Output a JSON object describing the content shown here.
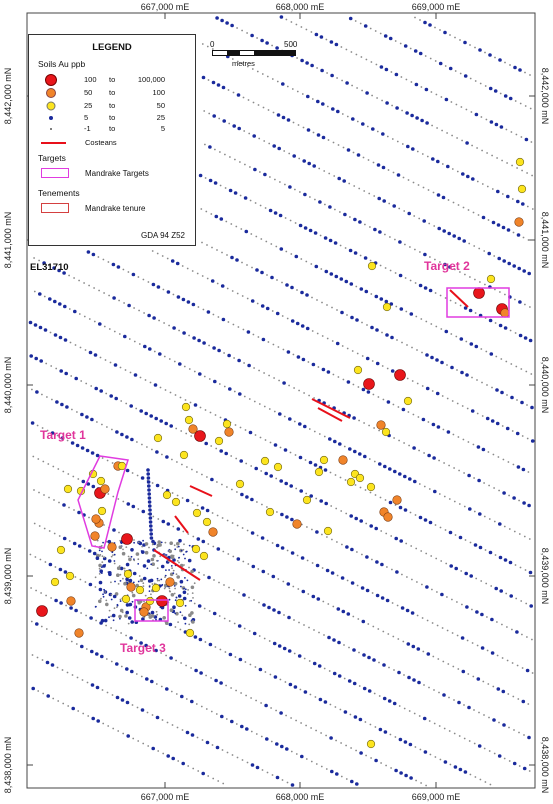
{
  "colors": {
    "au_high": "#e8161b",
    "au_med": "#f0842a",
    "au_low": "#fce41e",
    "au_trace": "#1a2a9c",
    "au_nil": "#8a8a8a",
    "costean": "#e8101a",
    "target": "#e03ce0",
    "tenure": "#d44040",
    "target_label": "#e0359b"
  },
  "axes": {
    "top_easting": [
      "667,000 mE",
      "668,000 mE",
      "669,000 mE"
    ],
    "bottom_easting": [
      "667,000 mE",
      "668,000 mE",
      "669,000 mE"
    ],
    "left_northing": [
      "8,442,000 mN",
      "8,441,000 mN",
      "8,440,000 mN",
      "8,439,000 mN",
      "8,438,000 mN"
    ],
    "right_northing": [
      "8,442,000 mN",
      "8,441,000 mN",
      "8,440,000 mN",
      "8,439,000 mN",
      "8,438,000 mN"
    ]
  },
  "legend": {
    "title": "LEGEND",
    "soils_heading": "Soils Au ppb",
    "ranges": [
      {
        "from": "100",
        "to_word": "to",
        "to": "100,000",
        "icon": "large-red-circle-icon"
      },
      {
        "from": "50",
        "to_word": "to",
        "to": "100",
        "icon": "orange-circle-icon"
      },
      {
        "from": "25",
        "to_word": "to",
        "to": "50",
        "icon": "yellow-circle-icon"
      },
      {
        "from": "5",
        "to_word": "to",
        "to": "25",
        "icon": "blue-dot-icon"
      },
      {
        "from": "-1",
        "to_word": "to",
        "to": "5",
        "icon": "grey-dot-icon"
      }
    ],
    "costeans_label": "Costeans",
    "targets_heading": "Targets",
    "targets_label": "Mandrake Targets",
    "tenements_heading": "Tenements",
    "tenure_label": "Mandrake tenure",
    "crs": "GDA 94 Z52"
  },
  "scalebar": {
    "start": "0",
    "end": "500",
    "unit": "metres"
  },
  "tenement_label": "EL31710",
  "targets": [
    {
      "label": "Target 1"
    },
    {
      "label": "Target 2"
    },
    {
      "label": "Target 3"
    }
  ]
}
